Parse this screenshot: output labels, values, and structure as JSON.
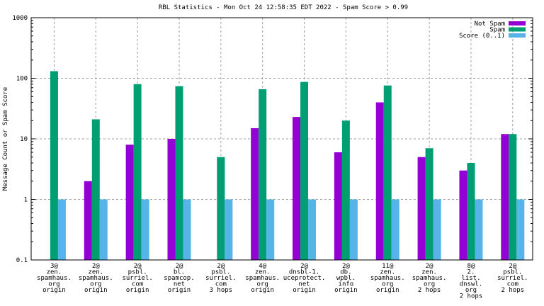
{
  "chart_data": {
    "type": "bar",
    "title": "RBL Statistics - Mon Oct 24 12:58:35 EDT 2022 - Spam Score > 0.99",
    "xlabel": "",
    "ylabel": "Message Count or Spam Score",
    "yscale": "log",
    "ylim": [
      0.1,
      1000
    ],
    "yticks": [
      0.1,
      1,
      10,
      100,
      1000
    ],
    "ytick_labels": [
      "0.1",
      "1",
      "10",
      "100",
      "1000"
    ],
    "grid": true,
    "legend_position": "top-right",
    "categories": [
      [
        "3@",
        "zen.",
        "spamhaus.",
        "org",
        "origin"
      ],
      [
        "2@",
        "zen.",
        "spamhaus.",
        "org",
        "origin"
      ],
      [
        "2@",
        "psbl.",
        "surriel.",
        "com",
        "origin"
      ],
      [
        "2@",
        "bl.",
        "spamcop.",
        "net",
        "origin"
      ],
      [
        "2@",
        "psbl.",
        "surriel.",
        "com",
        "3 hops"
      ],
      [
        "4@",
        "zen.",
        "spamhaus.",
        "org",
        "origin"
      ],
      [
        "2@",
        "dnsbl-1.",
        "uceprotect.",
        "net",
        "origin"
      ],
      [
        "2@",
        "db.",
        "wpbl.",
        "info",
        "origin"
      ],
      [
        "11@",
        "zen.",
        "spamhaus.",
        "org",
        "origin"
      ],
      [
        "2@",
        "zen.",
        "spamhaus.",
        "org",
        "2 hops"
      ],
      [
        "8@",
        "2.",
        "list.",
        "dnswl.",
        "org",
        "2 hops"
      ],
      [
        "2@",
        "psbl.",
        "surriel.",
        "com",
        "2 hops"
      ]
    ],
    "series": [
      {
        "name": "Not Spam",
        "color": "#9400d3",
        "values": [
          0,
          2,
          8,
          10,
          0,
          15,
          23,
          6,
          40,
          5,
          3,
          12
        ]
      },
      {
        "name": "Spam",
        "color": "#009e73",
        "values": [
          131,
          21,
          80,
          74,
          5,
          66,
          87,
          20,
          76,
          7,
          4,
          12
        ]
      },
      {
        "name": "Score (0..1)",
        "color": "#56b4e9",
        "values": [
          1,
          1,
          1,
          1,
          1,
          1,
          1,
          1,
          1,
          1,
          1,
          1
        ]
      }
    ]
  }
}
